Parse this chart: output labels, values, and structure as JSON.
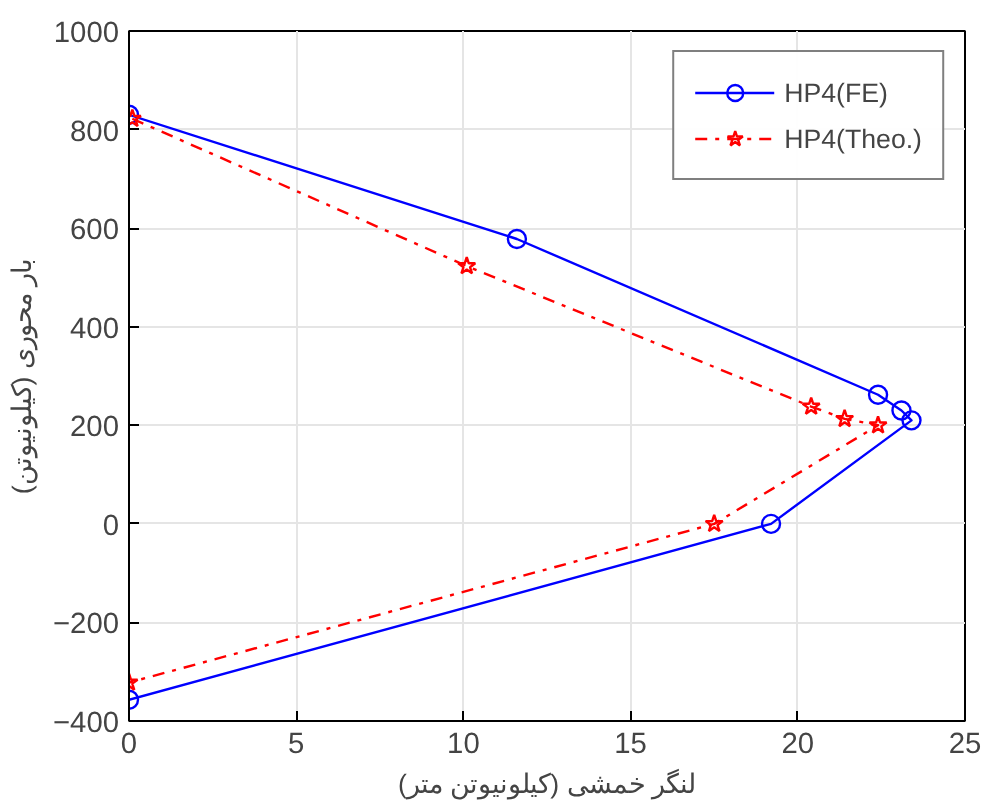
{
  "chart_data": {
    "type": "line",
    "xlabel": "لنگر خمشی (کیلونیوتن متر)",
    "ylabel": "بار محوری (کیلونیوتن)",
    "xlim": [
      0,
      25
    ],
    "xticks": [
      0,
      5,
      10,
      15,
      20,
      25
    ],
    "ylim": [
      -400,
      1000
    ],
    "yticks": [
      -400,
      -200,
      0,
      200,
      400,
      600,
      800,
      1000
    ],
    "grid": true,
    "legend": "top right",
    "series": [
      {
        "name": "HP4(FE)",
        "color": "#0000ff",
        "marker": "circle",
        "line_style": "solid",
        "x": [
          0,
          11.6,
          22.4,
          23.1,
          23.4,
          19.2,
          0
        ],
        "values": [
          830,
          578,
          262,
          230,
          210,
          0,
          -357
        ]
      },
      {
        "name": "HP4(Theo.)",
        "color": "#ff0000",
        "marker": "star",
        "line_style": "dashdot",
        "x": [
          0.1,
          10.1,
          20.4,
          21.4,
          22.4,
          17.5,
          0
        ],
        "values": [
          822,
          523,
          238,
          213,
          200,
          0,
          -322
        ]
      }
    ]
  }
}
